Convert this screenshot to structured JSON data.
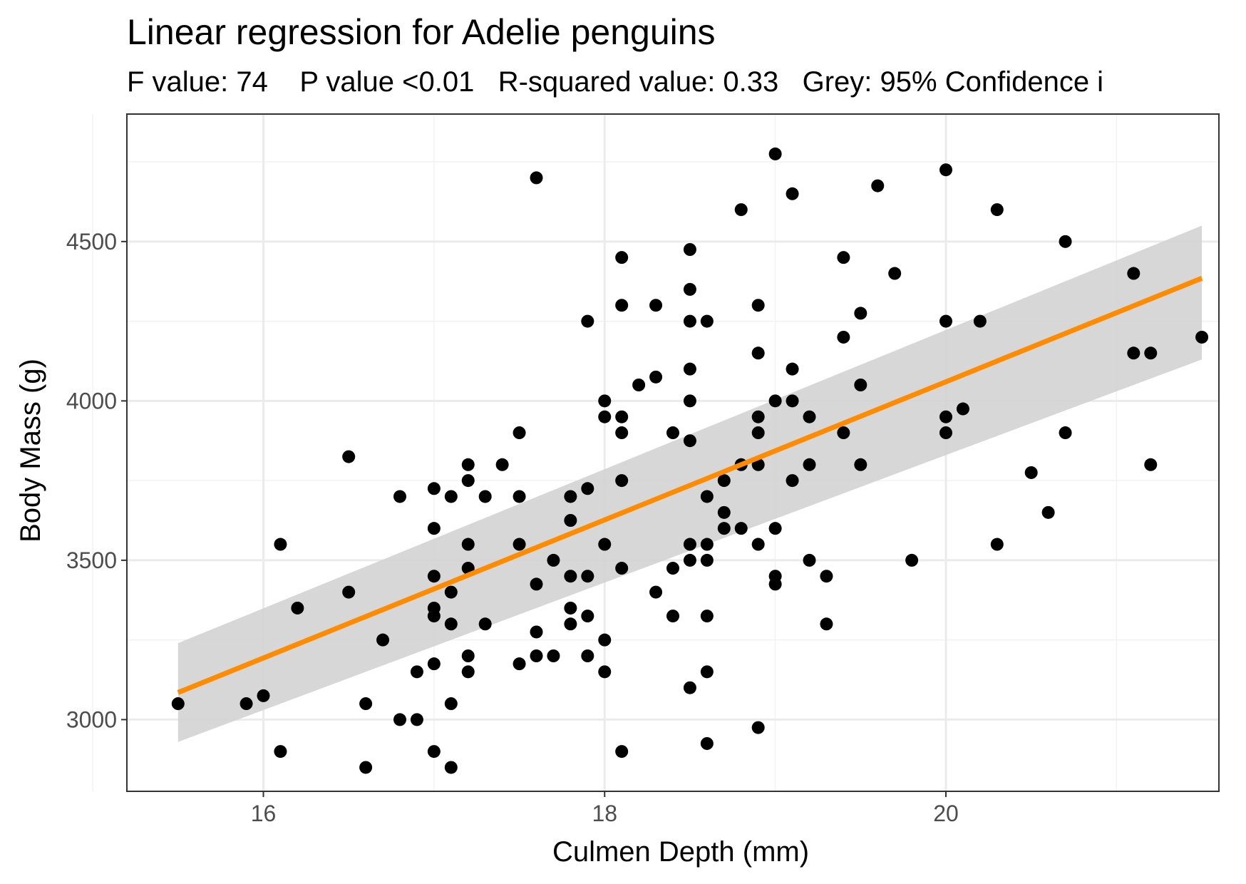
{
  "chart_data": {
    "type": "scatter",
    "title": "Linear regression for Adelie penguins",
    "subtitle": "F value: 74    P value <0.01   R-squared value: 0.33   Grey: 95% Confidence i",
    "xlabel": "Culmen Depth (mm)",
    "ylabel": "Body Mass (g)",
    "xlim": [
      15.2,
      21.6
    ],
    "ylim": [
      2775,
      4900
    ],
    "x_ticks": [
      16,
      18,
      20
    ],
    "x_tick_labels": [
      "16",
      "18",
      "20"
    ],
    "y_ticks": [
      3000,
      3500,
      4000,
      4500
    ],
    "y_tick_labels": [
      "3000",
      "3500",
      "4000",
      "4500"
    ],
    "x_minor": [
      15,
      17,
      19,
      21
    ],
    "y_minor": [
      3250,
      3750,
      4250,
      4750
    ],
    "grid": true,
    "colors": {
      "points": "#000000",
      "line": "#ff8c00",
      "band": "#d3d3d3"
    },
    "regression": {
      "x": [
        15.5,
        21.5
      ],
      "y": [
        3085,
        4385
      ],
      "ci_lower": [
        2930,
        4130
      ],
      "ci_upper": [
        3240,
        4550
      ]
    },
    "points": [
      [
        15.5,
        3050
      ],
      [
        15.9,
        3050
      ],
      [
        16.0,
        3075
      ],
      [
        16.1,
        3550
      ],
      [
        16.1,
        2900
      ],
      [
        16.2,
        3350
      ],
      [
        16.5,
        3825
      ],
      [
        16.5,
        3400
      ],
      [
        16.6,
        3050
      ],
      [
        16.6,
        2850
      ],
      [
        16.7,
        3250
      ],
      [
        16.8,
        3700
      ],
      [
        16.8,
        3000
      ],
      [
        16.9,
        3150
      ],
      [
        16.9,
        3000
      ],
      [
        17.0,
        3725
      ],
      [
        17.0,
        3600
      ],
      [
        17.0,
        3450
      ],
      [
        17.0,
        3350
      ],
      [
        17.0,
        3325
      ],
      [
        17.0,
        3175
      ],
      [
        17.0,
        2900
      ],
      [
        17.1,
        3700
      ],
      [
        17.1,
        3400
      ],
      [
        17.1,
        3300
      ],
      [
        17.1,
        3050
      ],
      [
        17.1,
        2850
      ],
      [
        17.2,
        3800
      ],
      [
        17.2,
        3750
      ],
      [
        17.2,
        3550
      ],
      [
        17.2,
        3475
      ],
      [
        17.2,
        3200
      ],
      [
        17.2,
        3150
      ],
      [
        17.3,
        3700
      ],
      [
        17.3,
        3300
      ],
      [
        17.4,
        3800
      ],
      [
        17.5,
        3900
      ],
      [
        17.5,
        3700
      ],
      [
        17.5,
        3550
      ],
      [
        17.5,
        3175
      ],
      [
        17.6,
        4700
      ],
      [
        17.6,
        3425
      ],
      [
        17.6,
        3275
      ],
      [
        17.6,
        3200
      ],
      [
        17.7,
        3500
      ],
      [
        17.7,
        3200
      ],
      [
        17.8,
        3700
      ],
      [
        17.8,
        3625
      ],
      [
        17.8,
        3450
      ],
      [
        17.8,
        3350
      ],
      [
        17.8,
        3300
      ],
      [
        17.9,
        4250
      ],
      [
        17.9,
        3725
      ],
      [
        17.9,
        3450
      ],
      [
        17.9,
        3325
      ],
      [
        17.9,
        3200
      ],
      [
        18.0,
        4000
      ],
      [
        18.0,
        3950
      ],
      [
        18.0,
        3550
      ],
      [
        18.0,
        3250
      ],
      [
        18.0,
        3150
      ],
      [
        18.1,
        4450
      ],
      [
        18.1,
        4300
      ],
      [
        18.1,
        3950
      ],
      [
        18.1,
        3900
      ],
      [
        18.1,
        3750
      ],
      [
        18.1,
        3475
      ],
      [
        18.1,
        2900
      ],
      [
        18.2,
        4050
      ],
      [
        18.3,
        4300
      ],
      [
        18.3,
        4075
      ],
      [
        18.3,
        3400
      ],
      [
        18.4,
        3900
      ],
      [
        18.4,
        3475
      ],
      [
        18.4,
        3325
      ],
      [
        18.5,
        4475
      ],
      [
        18.5,
        4350
      ],
      [
        18.5,
        4250
      ],
      [
        18.5,
        4100
      ],
      [
        18.5,
        4000
      ],
      [
        18.5,
        3875
      ],
      [
        18.5,
        3550
      ],
      [
        18.5,
        3500
      ],
      [
        18.5,
        3100
      ],
      [
        18.6,
        4250
      ],
      [
        18.6,
        3700
      ],
      [
        18.6,
        3550
      ],
      [
        18.6,
        3500
      ],
      [
        18.6,
        3325
      ],
      [
        18.6,
        3150
      ],
      [
        18.6,
        2925
      ],
      [
        18.7,
        3750
      ],
      [
        18.7,
        3650
      ],
      [
        18.7,
        3600
      ],
      [
        18.8,
        4600
      ],
      [
        18.8,
        3800
      ],
      [
        18.8,
        3600
      ],
      [
        18.9,
        4300
      ],
      [
        18.9,
        4150
      ],
      [
        18.9,
        3950
      ],
      [
        18.9,
        3900
      ],
      [
        18.9,
        3800
      ],
      [
        18.9,
        3550
      ],
      [
        18.9,
        2975
      ],
      [
        19.0,
        4775
      ],
      [
        19.0,
        4000
      ],
      [
        19.0,
        3600
      ],
      [
        19.0,
        3450
      ],
      [
        19.0,
        3425
      ],
      [
        19.1,
        4650
      ],
      [
        19.1,
        4100
      ],
      [
        19.1,
        4000
      ],
      [
        19.1,
        3750
      ],
      [
        19.2,
        3950
      ],
      [
        19.2,
        3800
      ],
      [
        19.2,
        3500
      ],
      [
        19.3,
        3450
      ],
      [
        19.3,
        3300
      ],
      [
        19.4,
        4450
      ],
      [
        19.4,
        4200
      ],
      [
        19.4,
        3900
      ],
      [
        19.5,
        4275
      ],
      [
        19.5,
        4050
      ],
      [
        19.5,
        3800
      ],
      [
        19.6,
        4675
      ],
      [
        19.7,
        4400
      ],
      [
        19.8,
        3500
      ],
      [
        20.0,
        4725
      ],
      [
        20.0,
        4250
      ],
      [
        20.0,
        3950
      ],
      [
        20.0,
        3900
      ],
      [
        20.1,
        3975
      ],
      [
        20.2,
        4250
      ],
      [
        20.3,
        4600
      ],
      [
        20.3,
        3550
      ],
      [
        20.5,
        3775
      ],
      [
        20.6,
        3650
      ],
      [
        20.7,
        4500
      ],
      [
        20.7,
        3900
      ],
      [
        21.1,
        4400
      ],
      [
        21.1,
        4150
      ],
      [
        21.2,
        4150
      ],
      [
        21.2,
        3800
      ],
      [
        21.5,
        4200
      ]
    ]
  }
}
